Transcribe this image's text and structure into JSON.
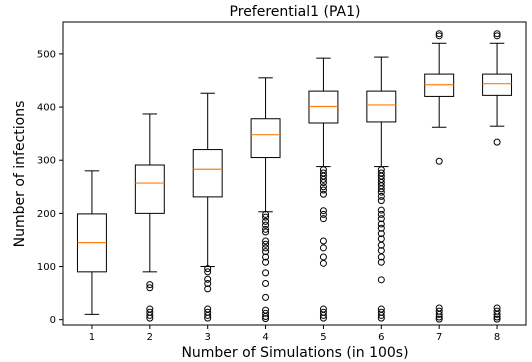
{
  "chart_data": {
    "type": "box",
    "title": "Preferential1 (PA1)",
    "xlabel": "Number of Simulations (in 100s)",
    "ylabel": "Number of infections",
    "ylim": [
      -10,
      560
    ],
    "yticks": [
      0,
      100,
      200,
      300,
      400,
      500
    ],
    "grid": false,
    "colors": {
      "box": "#000000",
      "median": "#ff7f0e",
      "flier": "#000000"
    },
    "boxes": [
      {
        "label": "1",
        "whislo": 10,
        "q1": 90,
        "med": 145,
        "q3": 199,
        "whishi": 280,
        "fliers": []
      },
      {
        "label": "2",
        "whislo": 90,
        "q1": 200,
        "med": 257,
        "q3": 291,
        "whishi": 387,
        "fliers": [
          66,
          60,
          20,
          14,
          8,
          3
        ]
      },
      {
        "label": "3",
        "whislo": 100,
        "q1": 231,
        "med": 283,
        "q3": 320,
        "whishi": 426,
        "fliers": [
          96,
          90,
          76,
          68,
          58,
          20,
          14,
          8,
          3
        ]
      },
      {
        "label": "4",
        "whislo": 203,
        "q1": 305,
        "med": 348,
        "q3": 378,
        "whishi": 455,
        "fliers": [
          198,
          193,
          185,
          178,
          170,
          165,
          148,
          142,
          135,
          128,
          118,
          108,
          88,
          68,
          42,
          18,
          12,
          6,
          2
        ]
      },
      {
        "label": "5",
        "whislo": 288,
        "q1": 370,
        "med": 401,
        "q3": 430,
        "whishi": 492,
        "fliers": [
          282,
          276,
          270,
          264,
          258,
          250,
          244,
          236,
          205,
          198,
          190,
          148,
          135,
          118,
          106,
          20,
          14,
          8,
          3
        ]
      },
      {
        "label": "6",
        "whislo": 288,
        "q1": 372,
        "med": 404,
        "q3": 430,
        "whishi": 494,
        "fliers": [
          282,
          276,
          270,
          264,
          258,
          252,
          246,
          240,
          232,
          224,
          206,
          198,
          190,
          180,
          172,
          162,
          152,
          140,
          130,
          118,
          108,
          75,
          20,
          14,
          8,
          3
        ]
      },
      {
        "label": "7",
        "whislo": 362,
        "q1": 420,
        "med": 442,
        "q3": 462,
        "whishi": 520,
        "fliers": [
          538,
          534,
          298,
          22,
          16,
          10,
          5,
          1
        ]
      },
      {
        "label": "8",
        "whislo": 364,
        "q1": 422,
        "med": 444,
        "q3": 462,
        "whishi": 520,
        "fliers": [
          538,
          534,
          334,
          22,
          16,
          10,
          5,
          1
        ]
      }
    ]
  }
}
